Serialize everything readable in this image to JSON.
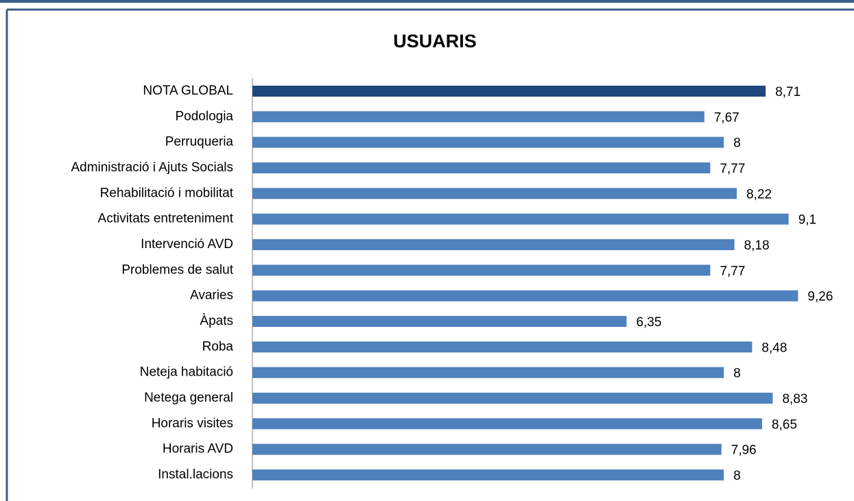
{
  "chart_data": {
    "type": "bar",
    "orientation": "horizontal",
    "title": "USUARIS",
    "categories": [
      "NOTA GLOBAL",
      "Podologia",
      "Perruqueria",
      "Administració i Ajuts Socials",
      "Rehabilitació i mobilitat ",
      "Activitats entreteniment",
      "Intervenció  AVD",
      "Problemes de salut",
      "Avaries",
      "Àpats",
      "Roba",
      "Neteja habitació",
      "Netega general",
      "Horaris visites",
      "Horaris AVD",
      "Instal.lacions"
    ],
    "values": [
      8.71,
      7.67,
      8,
      7.77,
      8.22,
      9.1,
      8.18,
      7.77,
      9.26,
      6.35,
      8.48,
      8,
      8.83,
      8.65,
      7.96,
      8
    ],
    "value_labels": [
      "8,71",
      "7,67",
      "8",
      "7,77",
      "8,22",
      "9,1",
      "8,18",
      "7,77",
      "9,26",
      "6,35",
      "8,48",
      "8",
      "8,83",
      "8,65",
      "7,96",
      "8"
    ],
    "colors": [
      "#1f497d",
      "#4f81bd",
      "#4f81bd",
      "#4f81bd",
      "#4f81bd",
      "#4f81bd",
      "#4f81bd",
      "#4f81bd",
      "#4f81bd",
      "#4f81bd",
      "#4f81bd",
      "#4f81bd",
      "#4f81bd",
      "#4f81bd",
      "#4f81bd",
      "#4f81bd"
    ]
  }
}
